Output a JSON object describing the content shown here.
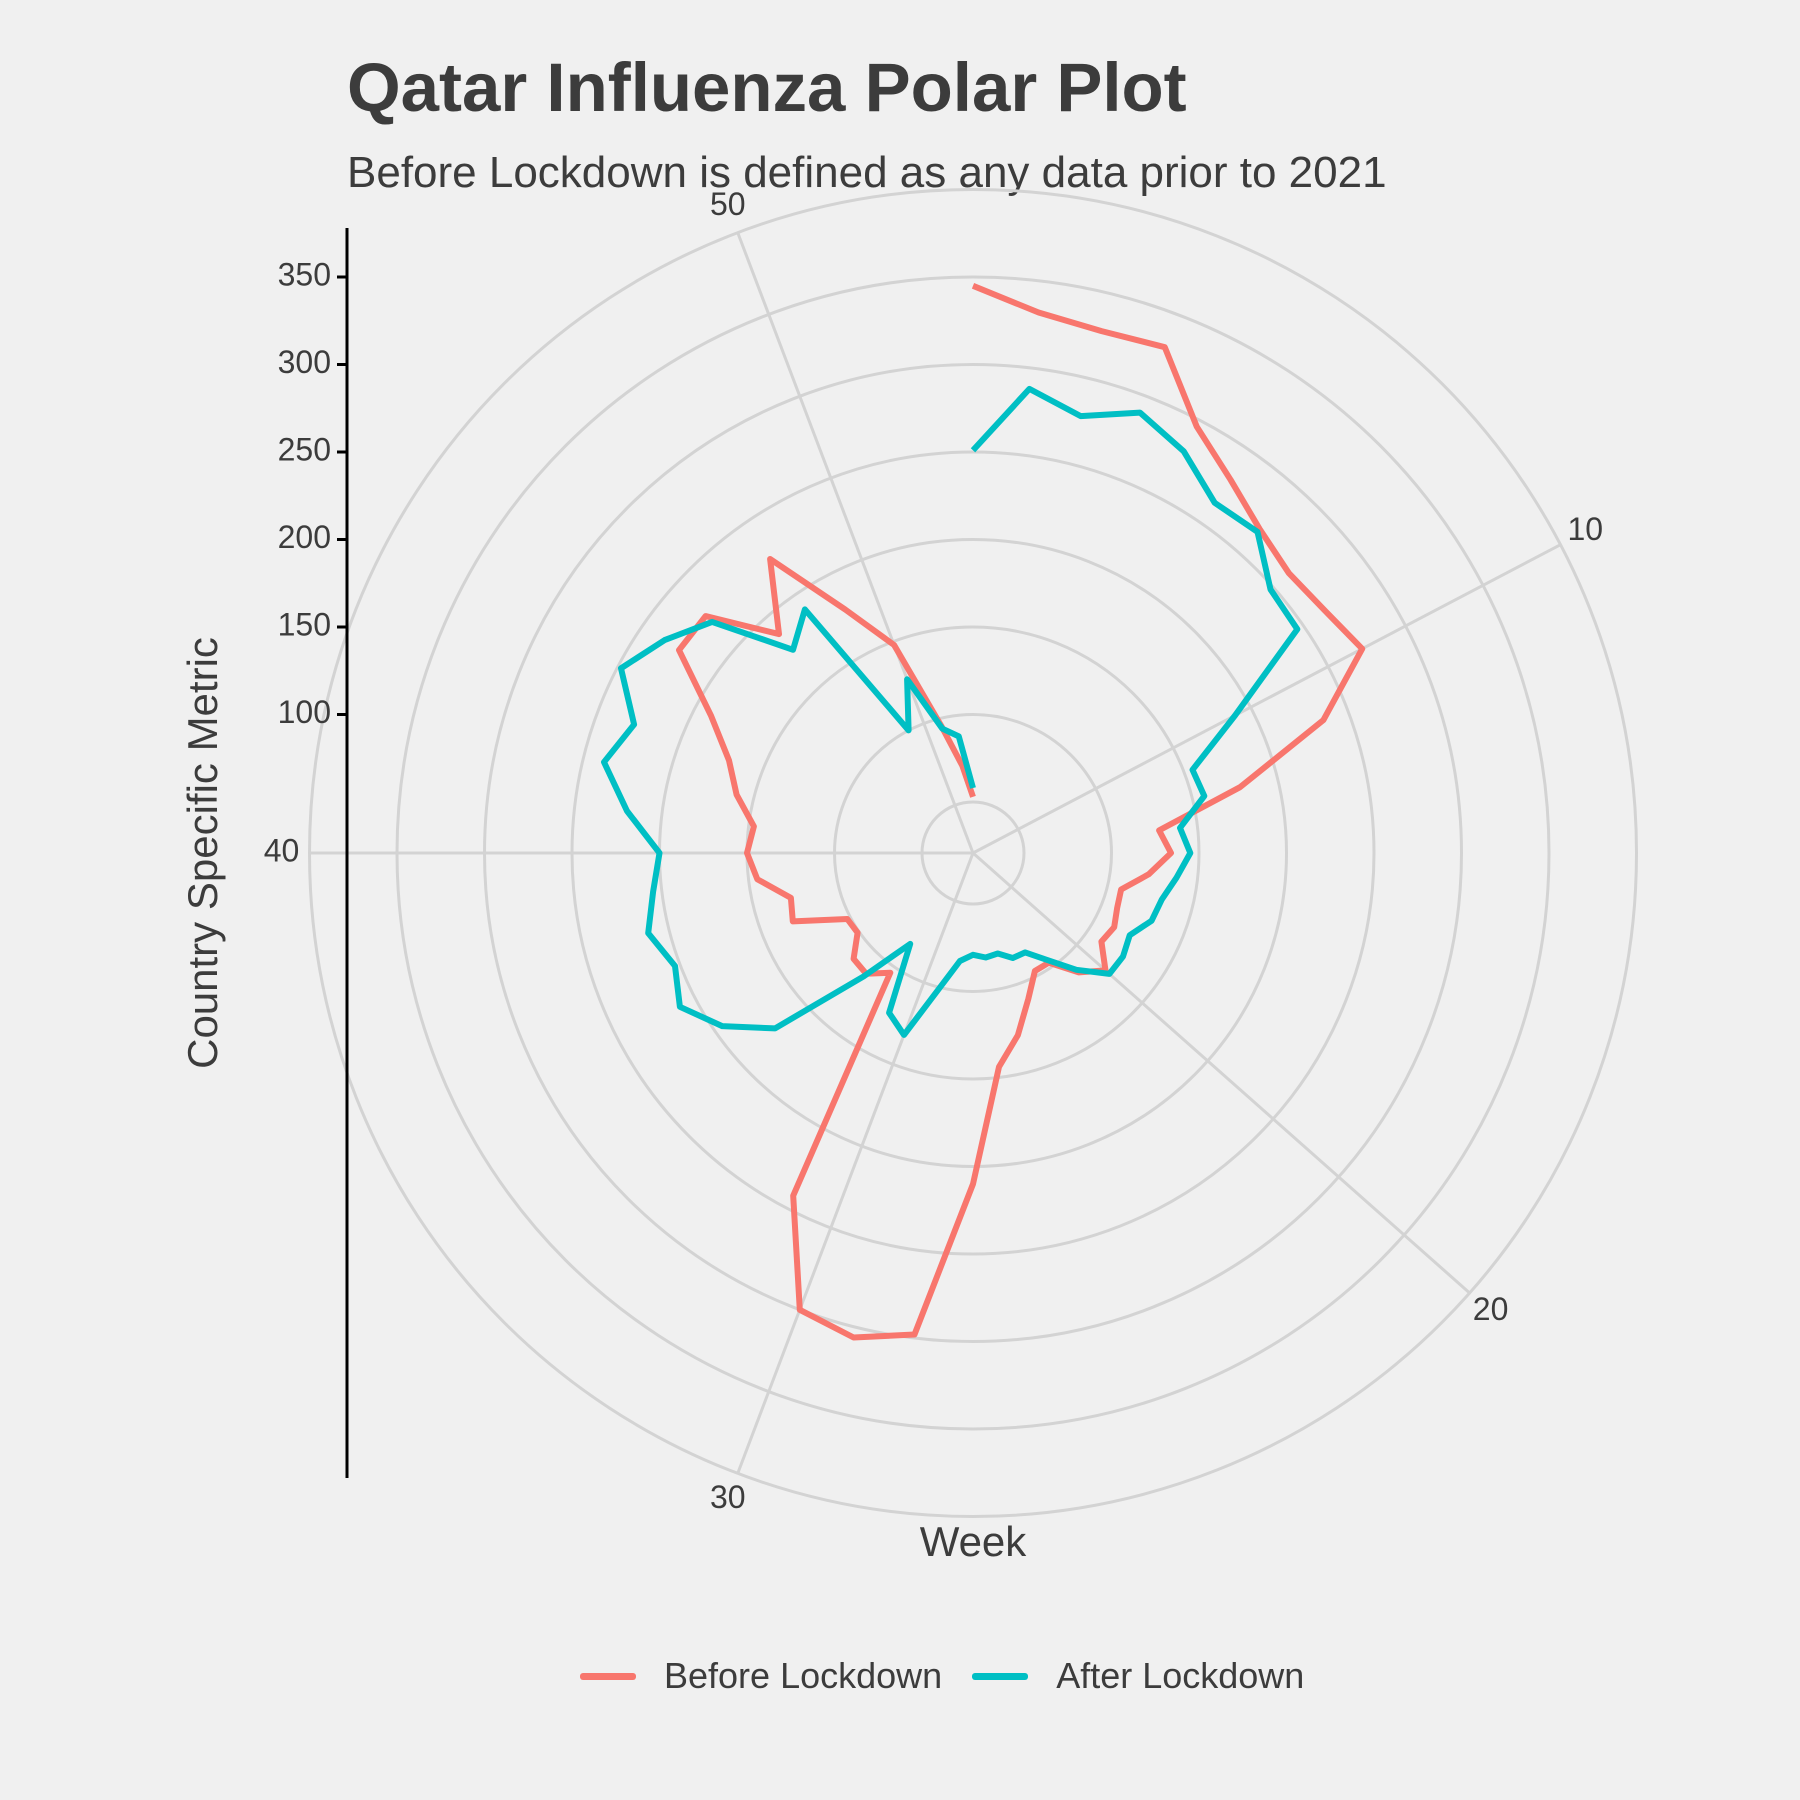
{
  "chart_data": {
    "type": "line",
    "coord": "polar",
    "title": "Qatar Influenza Polar Plot",
    "subtitle": "Before Lockdown is defined as any data prior to 2021",
    "xlabel": "Week",
    "ylabel": "Country Specific Metric",
    "theta_ticks": [
      10,
      20,
      30,
      40,
      50
    ],
    "theta_range": [
      1,
      53
    ],
    "r_ticks": [
      100,
      150,
      200,
      250,
      300,
      350
    ],
    "r_range": [
      50,
      400
    ],
    "grid": true,
    "legend_position": "bottom",
    "x": [
      1,
      2,
      3,
      4,
      5,
      6,
      7,
      8,
      9,
      10,
      11,
      12,
      13,
      14,
      15,
      16,
      17,
      18,
      19,
      20,
      21,
      22,
      23,
      24,
      25,
      26,
      27,
      28,
      29,
      30,
      31,
      32,
      33,
      34,
      35,
      36,
      37,
      38,
      39,
      40,
      41,
      42,
      43,
      44,
      45,
      46,
      47,
      48,
      49,
      50,
      51,
      52,
      53
    ],
    "series": [
      {
        "name": "Before Lockdown",
        "color": "#F8766D",
        "values": [
          345,
          332,
          328,
          330,
          296,
          280,
          268,
          262,
          265,
          272,
          235,
          178,
          128,
          134,
          122,
          108,
          109,
          112,
          110,
          122,
          112,
          97,
          97,
          110,
          128,
          144,
          210,
          298,
          306,
          300,
          242,
          104,
          113,
          112,
          101,
          102,
          131,
          128,
          145,
          150,
          147,
          160,
          170,
          190,
          225,
          225,
          188,
          225,
          178,
          148,
          95,
          71,
          53
        ]
      },
      {
        "name": "After Lockdown",
        "color": "#00BFC4",
        "values": [
          251,
          288,
          278,
          290,
          280,
          264,
          266,
          248,
          246,
          190,
          155,
          157,
          140,
          145,
          138,
          132,
          130,
          122,
          125,
          125,
          110,
          95,
          85,
          85,
          80,
          81,
          79,
          83,
          100,
          132,
          124,
          84,
          115,
          172,
          195,
          210,
          203,
          212,
          205,
          200,
          220,
          238,
          228,
          248,
          235,
          220,
          176,
          190,
          100,
          127,
          94,
          88,
          58
        ]
      }
    ]
  }
}
